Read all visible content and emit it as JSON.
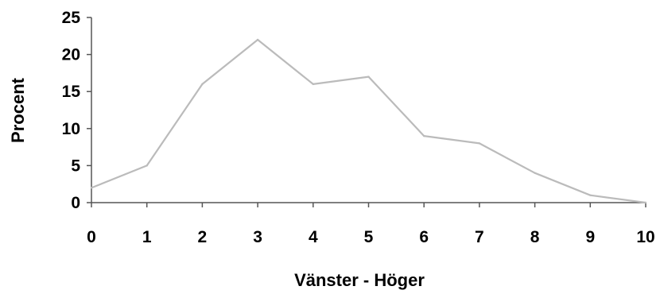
{
  "chart_data": {
    "type": "line",
    "x": [
      0,
      1,
      2,
      3,
      4,
      5,
      6,
      7,
      8,
      9,
      10
    ],
    "series": [
      {
        "values": [
          2,
          5,
          16,
          22,
          16,
          17,
          9,
          8,
          4,
          1,
          0
        ]
      }
    ],
    "xlabel": "Vänster - Höger",
    "ylabel": "Procent",
    "xlim": [
      0,
      10
    ],
    "ylim": [
      0,
      25
    ],
    "x_ticks": [
      "0",
      "1",
      "2",
      "3",
      "4",
      "5",
      "6",
      "7",
      "8",
      "9",
      "10"
    ],
    "y_ticks": [
      "0",
      "5",
      "10",
      "15",
      "20",
      "25"
    ],
    "grid": false,
    "legend": "none",
    "line_color": "#bbbbbb",
    "axis_color": "#555555"
  }
}
